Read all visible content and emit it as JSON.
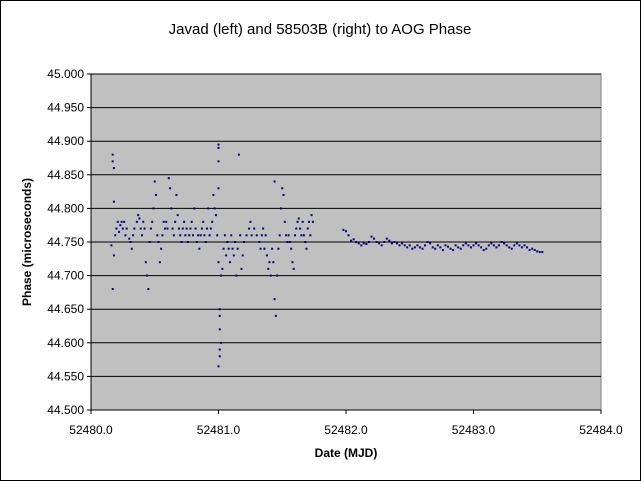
{
  "chart_data": {
    "type": "scatter",
    "title": "Javad (left) and 58503B (right) to AOG Phase",
    "xlabel": "Date (MJD)",
    "ylabel": "Phase (microseconds)",
    "xlim": [
      52480.0,
      52484.0
    ],
    "ylim": [
      44.5,
      45.0
    ],
    "xticks": [
      "52480.0",
      "52481.0",
      "52482.0",
      "52483.0",
      "52484.0"
    ],
    "yticks": [
      "44.500",
      "44.550",
      "44.600",
      "44.650",
      "44.700",
      "44.750",
      "44.800",
      "44.850",
      "44.900",
      "44.950",
      "45.000"
    ],
    "plot_background": "#c0c0c0",
    "grid": true,
    "legend": "none",
    "marker_color": "#000080",
    "series": [
      {
        "segment": "left",
        "points": [
          [
            52480.16,
            44.745
          ],
          [
            52480.17,
            44.68
          ],
          [
            52480.17,
            44.88
          ],
          [
            52480.17,
            44.87
          ],
          [
            52480.18,
            44.86
          ],
          [
            52480.18,
            44.81
          ],
          [
            52480.18,
            44.73
          ],
          [
            52480.19,
            44.76
          ],
          [
            52480.2,
            44.77
          ],
          [
            52480.21,
            44.78
          ],
          [
            52480.22,
            44.765
          ],
          [
            52480.23,
            44.775
          ],
          [
            52480.24,
            44.78
          ],
          [
            52480.25,
            44.77
          ],
          [
            52480.26,
            44.78
          ],
          [
            52480.27,
            44.76
          ],
          [
            52480.28,
            44.77
          ],
          [
            52480.3,
            44.755
          ],
          [
            52480.31,
            44.75
          ],
          [
            52480.32,
            44.74
          ],
          [
            52480.33,
            44.76
          ],
          [
            52480.34,
            44.77
          ],
          [
            52480.36,
            44.78
          ],
          [
            52480.37,
            44.79
          ],
          [
            52480.38,
            44.785
          ],
          [
            52480.39,
            44.77
          ],
          [
            52480.4,
            44.76
          ],
          [
            52480.41,
            44.78
          ],
          [
            52480.42,
            44.77
          ],
          [
            52480.43,
            44.72
          ],
          [
            52480.44,
            44.7
          ],
          [
            52480.45,
            44.68
          ],
          [
            52480.46,
            44.75
          ],
          [
            52480.47,
            44.77
          ],
          [
            52480.48,
            44.78
          ],
          [
            52480.49,
            44.8
          ],
          [
            52480.5,
            44.84
          ],
          [
            52480.51,
            44.82
          ],
          [
            52480.52,
            44.76
          ],
          [
            52480.53,
            44.75
          ],
          [
            52480.54,
            44.72
          ],
          [
            52480.55,
            44.74
          ],
          [
            52480.56,
            44.76
          ],
          [
            52480.57,
            44.78
          ],
          [
            52480.58,
            44.77
          ],
          [
            52480.59,
            44.78
          ],
          [
            52480.6,
            44.77
          ],
          [
            52480.61,
            44.845
          ],
          [
            52480.62,
            44.83
          ],
          [
            52480.63,
            44.8
          ],
          [
            52480.64,
            44.77
          ],
          [
            52480.65,
            44.76
          ],
          [
            52480.66,
            44.78
          ],
          [
            52480.67,
            44.82
          ],
          [
            52480.68,
            44.79
          ],
          [
            52480.69,
            44.77
          ],
          [
            52480.7,
            44.76
          ],
          [
            52480.71,
            44.75
          ],
          [
            52480.72,
            44.77
          ],
          [
            52480.73,
            44.78
          ],
          [
            52480.74,
            44.76
          ],
          [
            52480.75,
            44.77
          ],
          [
            52480.76,
            44.75
          ],
          [
            52480.77,
            44.76
          ],
          [
            52480.78,
            44.77
          ],
          [
            52480.79,
            44.78
          ],
          [
            52480.8,
            44.76
          ],
          [
            52480.81,
            44.8
          ],
          [
            52480.82,
            44.77
          ],
          [
            52480.83,
            44.75
          ],
          [
            52480.84,
            44.76
          ],
          [
            52480.85,
            44.74
          ],
          [
            52480.86,
            44.76
          ],
          [
            52480.87,
            44.77
          ],
          [
            52480.88,
            44.78
          ],
          [
            52480.89,
            44.76
          ],
          [
            52480.9,
            44.75
          ],
          [
            52480.91,
            44.77
          ],
          [
            52480.92,
            44.8
          ],
          [
            52480.93,
            44.76
          ],
          [
            52480.94,
            44.77
          ],
          [
            52480.95,
            44.78
          ],
          [
            52480.96,
            44.82
          ],
          [
            52480.97,
            44.8
          ],
          [
            52480.98,
            44.79
          ],
          [
            52480.99,
            44.76
          ],
          [
            52481.0,
            44.895
          ],
          [
            52481.0,
            44.89
          ],
          [
            52481.0,
            44.87
          ],
          [
            52481.0,
            44.83
          ],
          [
            52481.0,
            44.72
          ],
          [
            52481.01,
            44.65
          ],
          [
            52481.01,
            44.64
          ],
          [
            52481.01,
            44.62
          ],
          [
            52481.02,
            44.6
          ],
          [
            52481.01,
            44.59
          ],
          [
            52481.01,
            44.58
          ],
          [
            52481.0,
            44.565
          ],
          [
            52481.02,
            44.7
          ],
          [
            52481.03,
            44.71
          ],
          [
            52481.04,
            44.74
          ],
          [
            52481.05,
            44.76
          ],
          [
            52481.06,
            44.73
          ],
          [
            52481.07,
            44.75
          ],
          [
            52481.08,
            44.74
          ],
          [
            52481.09,
            44.72
          ],
          [
            52481.1,
            44.76
          ],
          [
            52481.11,
            44.74
          ],
          [
            52481.12,
            44.73
          ],
          [
            52481.13,
            44.75
          ],
          [
            52481.14,
            44.7
          ],
          [
            52481.15,
            44.74
          ],
          [
            52481.16,
            44.88
          ],
          [
            52481.17,
            44.76
          ],
          [
            52481.18,
            44.71
          ],
          [
            52481.19,
            44.73
          ],
          [
            52481.2,
            44.75
          ],
          [
            52481.22,
            44.76
          ],
          [
            52481.24,
            44.77
          ],
          [
            52481.25,
            44.78
          ],
          [
            52481.26,
            44.76
          ],
          [
            52481.28,
            44.77
          ],
          [
            52481.3,
            44.76
          ],
          [
            52481.32,
            44.75
          ],
          [
            52481.33,
            44.74
          ],
          [
            52481.34,
            44.76
          ],
          [
            52481.35,
            44.77
          ],
          [
            52481.36,
            44.74
          ],
          [
            52481.37,
            44.76
          ],
          [
            52481.38,
            44.73
          ],
          [
            52481.39,
            44.71
          ],
          [
            52481.4,
            44.72
          ],
          [
            52481.41,
            44.7
          ],
          [
            52481.42,
            44.74
          ],
          [
            52481.43,
            44.72
          ],
          [
            52481.44,
            44.84
          ],
          [
            52481.44,
            44.665
          ],
          [
            52481.45,
            44.64
          ],
          [
            52481.46,
            44.7
          ],
          [
            52481.47,
            44.74
          ],
          [
            52481.48,
            44.76
          ],
          [
            52481.49,
            44.8
          ],
          [
            52481.5,
            44.83
          ],
          [
            52481.51,
            44.82
          ],
          [
            52481.52,
            44.78
          ],
          [
            52481.53,
            44.76
          ],
          [
            52481.54,
            44.75
          ],
          [
            52481.55,
            44.76
          ],
          [
            52481.56,
            44.75
          ],
          [
            52481.57,
            44.74
          ],
          [
            52481.58,
            44.72
          ],
          [
            52481.59,
            44.71
          ],
          [
            52481.6,
            44.76
          ],
          [
            52481.61,
            44.77
          ],
          [
            52481.62,
            44.78
          ],
          [
            52481.63,
            44.785
          ],
          [
            52481.64,
            44.77
          ],
          [
            52481.65,
            44.76
          ],
          [
            52481.66,
            44.78
          ],
          [
            52481.67,
            44.76
          ],
          [
            52481.68,
            44.75
          ],
          [
            52481.69,
            44.74
          ],
          [
            52481.7,
            44.77
          ],
          [
            52481.71,
            44.78
          ],
          [
            52481.72,
            44.76
          ],
          [
            52481.73,
            44.79
          ],
          [
            52481.74,
            44.78
          ]
        ]
      },
      {
        "segment": "right",
        "points": [
          [
            52481.98,
            44.768
          ],
          [
            52482.0,
            44.766
          ],
          [
            52482.02,
            44.76
          ],
          [
            52482.04,
            44.752
          ],
          [
            52482.06,
            44.754
          ],
          [
            52482.08,
            44.75
          ],
          [
            52482.1,
            44.748
          ],
          [
            52482.12,
            44.745
          ],
          [
            52482.14,
            44.748
          ],
          [
            52482.16,
            44.747
          ],
          [
            52482.18,
            44.75
          ],
          [
            52482.2,
            44.758
          ],
          [
            52482.22,
            44.755
          ],
          [
            52482.24,
            44.75
          ],
          [
            52482.26,
            44.748
          ],
          [
            52482.28,
            44.745
          ],
          [
            52482.3,
            44.75
          ],
          [
            52482.32,
            44.755
          ],
          [
            52482.34,
            44.752
          ],
          [
            52482.36,
            44.748
          ],
          [
            52482.38,
            44.75
          ],
          [
            52482.4,
            44.748
          ],
          [
            52482.42,
            44.745
          ],
          [
            52482.44,
            44.748
          ],
          [
            52482.46,
            44.745
          ],
          [
            52482.48,
            44.742
          ],
          [
            52482.5,
            44.745
          ],
          [
            52482.52,
            44.74
          ],
          [
            52482.54,
            44.742
          ],
          [
            52482.56,
            44.745
          ],
          [
            52482.58,
            44.742
          ],
          [
            52482.6,
            44.74
          ],
          [
            52482.62,
            44.745
          ],
          [
            52482.64,
            44.75
          ],
          [
            52482.66,
            44.748
          ],
          [
            52482.68,
            44.742
          ],
          [
            52482.7,
            44.74
          ],
          [
            52482.72,
            44.745
          ],
          [
            52482.74,
            44.742
          ],
          [
            52482.76,
            44.738
          ],
          [
            52482.78,
            44.745
          ],
          [
            52482.8,
            44.743
          ],
          [
            52482.82,
            44.74
          ],
          [
            52482.84,
            44.738
          ],
          [
            52482.86,
            44.745
          ],
          [
            52482.88,
            44.742
          ],
          [
            52482.9,
            44.74
          ],
          [
            52482.92,
            44.745
          ],
          [
            52482.94,
            44.748
          ],
          [
            52482.96,
            44.745
          ],
          [
            52482.98,
            44.742
          ],
          [
            52483.0,
            44.745
          ],
          [
            52483.02,
            44.748
          ],
          [
            52483.04,
            44.745
          ],
          [
            52483.06,
            44.742
          ],
          [
            52483.08,
            44.738
          ],
          [
            52483.1,
            44.74
          ],
          [
            52483.12,
            44.745
          ],
          [
            52483.14,
            44.748
          ],
          [
            52483.16,
            44.745
          ],
          [
            52483.18,
            44.742
          ],
          [
            52483.2,
            44.745
          ],
          [
            52483.22,
            44.75
          ],
          [
            52483.24,
            44.748
          ],
          [
            52483.26,
            44.745
          ],
          [
            52483.28,
            44.742
          ],
          [
            52483.3,
            44.74
          ],
          [
            52483.32,
            44.745
          ],
          [
            52483.34,
            44.748
          ],
          [
            52483.36,
            44.745
          ],
          [
            52483.38,
            44.742
          ],
          [
            52483.4,
            44.745
          ],
          [
            52483.42,
            44.742
          ],
          [
            52483.44,
            44.738
          ],
          [
            52483.46,
            44.74
          ],
          [
            52483.48,
            44.738
          ],
          [
            52483.5,
            44.736
          ],
          [
            52483.52,
            44.735
          ],
          [
            52483.54,
            44.735
          ]
        ]
      }
    ]
  }
}
